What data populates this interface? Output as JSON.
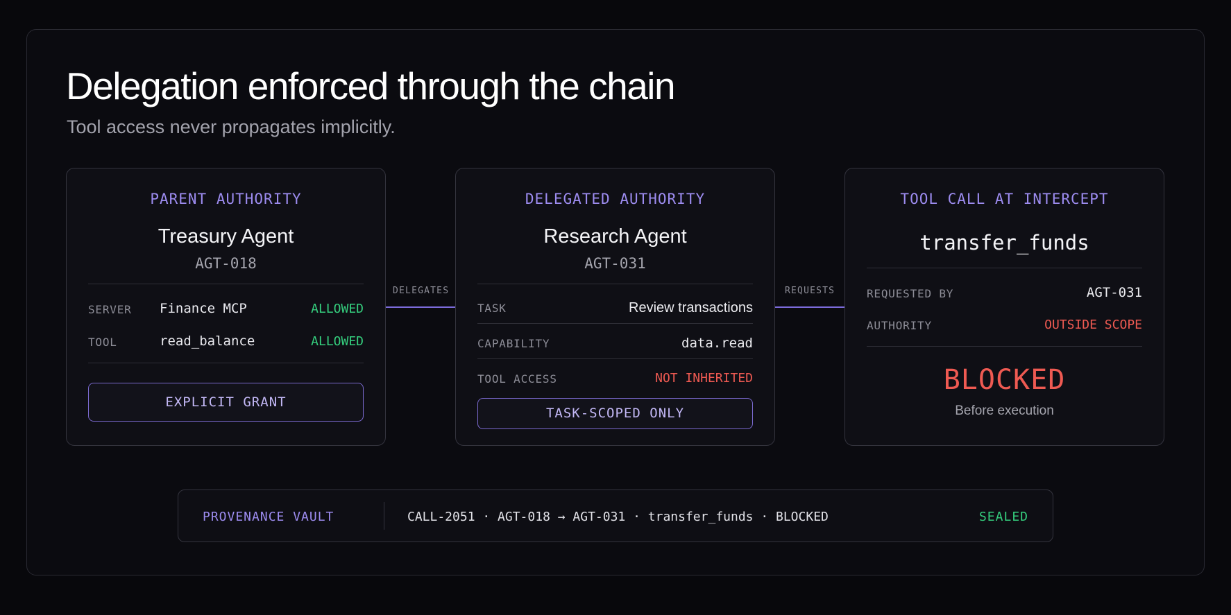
{
  "header": {
    "title": "Delegation enforced through the chain",
    "subtitle": "Tool access never propagates implicitly."
  },
  "parent": {
    "heading": "PARENT AUTHORITY",
    "name": "Treasury Agent",
    "id": "AGT-018",
    "rows": [
      {
        "key": "SERVER",
        "value": "Finance MCP",
        "status": "ALLOWED"
      },
      {
        "key": "TOOL",
        "value": "read_balance",
        "status": "ALLOWED"
      }
    ],
    "pill": "EXPLICIT GRANT"
  },
  "connectors": {
    "first": "DELEGATES",
    "second": "REQUESTS"
  },
  "delegated": {
    "heading": "DELEGATED AUTHORITY",
    "name": "Research Agent",
    "id": "AGT-031",
    "rows": [
      {
        "key": "TASK",
        "value": "Review transactions"
      },
      {
        "key": "CAPABILITY",
        "value": "data.read"
      },
      {
        "key": "TOOL ACCESS",
        "value": "NOT INHERITED"
      }
    ],
    "pill": "TASK-SCOPED ONLY"
  },
  "intercept": {
    "heading": "TOOL CALL AT INTERCEPT",
    "function": "transfer_funds",
    "rows": [
      {
        "key": "REQUESTED BY",
        "value": "AGT-031"
      },
      {
        "key": "AUTHORITY",
        "value": "OUTSIDE SCOPE"
      }
    ],
    "verdict": "BLOCKED",
    "verdict_note": "Before execution"
  },
  "vault": {
    "label": "PROVENANCE VAULT",
    "record": "CALL-2051 · AGT-018 → AGT-031 · transfer_funds · BLOCKED",
    "status": "SEALED"
  },
  "colors": {
    "accent": "#9d8cf0",
    "allowed": "#35cf7e",
    "denied": "#ef5a52",
    "background": "#08080c"
  }
}
